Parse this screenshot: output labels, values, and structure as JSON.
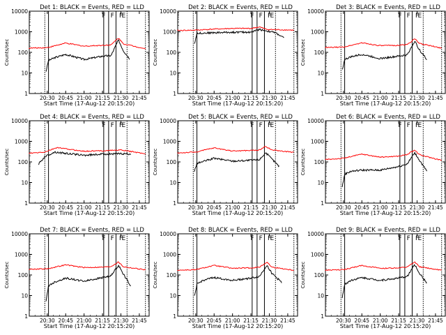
{
  "chart_data": [
    {
      "type": "line",
      "title": "Det 1: BLACK = Events, RED = LLD",
      "xlabel": "Start Time (17-Aug-12 20:15:20)",
      "ylabel": "Counts/sec",
      "ylim": [
        1,
        10000
      ],
      "yscale": "log",
      "xticks": [
        "20:30",
        "20:45",
        "21:00",
        "21:15",
        "21:30",
        "21:45"
      ],
      "yticks": [
        "1",
        "10",
        "100",
        "1000",
        "10000"
      ],
      "flags": [
        "F",
        "F",
        "F",
        "E"
      ],
      "series": [
        {
          "name": "Events",
          "color": "#000000",
          "start": "20:29",
          "end": "21:37",
          "points": [
            [
              "20:29",
              12
            ],
            [
              "20:31",
              40
            ],
            [
              "20:36",
              55
            ],
            [
              "20:45",
              80
            ],
            [
              "21:00",
              45
            ],
            [
              "21:15",
              65
            ],
            [
              "21:22",
              70
            ],
            [
              "21:28",
              400
            ],
            [
              "21:32",
              120
            ],
            [
              "21:37",
              50
            ]
          ]
        },
        {
          "name": "LLD",
          "color": "#ff0000",
          "start": "20:15",
          "end": "21:50",
          "points": [
            [
              "20:15",
              160
            ],
            [
              "20:30",
              170
            ],
            [
              "20:45",
              280
            ],
            [
              "21:00",
              200
            ],
            [
              "21:15",
              220
            ],
            [
              "21:22",
              230
            ],
            [
              "21:28",
              500
            ],
            [
              "21:32",
              260
            ],
            [
              "21:50",
              150
            ]
          ]
        }
      ]
    },
    {
      "type": "line",
      "title": "Det 2: BLACK = Events, RED = LLD",
      "xlabel": "Start Time (17-Aug-12 20:15:20)",
      "ylabel": "Counts/sec",
      "ylim": [
        1,
        10000
      ],
      "yscale": "log",
      "xticks": [
        "20:30",
        "20:45",
        "21:00",
        "21:15",
        "21:30",
        "21:45"
      ],
      "yticks": [
        "1",
        "10",
        "100",
        "1000",
        "10000"
      ],
      "flags": [
        "F",
        "F",
        "F",
        "E"
      ],
      "series": [
        {
          "name": "Events",
          "color": "#000000",
          "start": "20:29",
          "end": "21:42",
          "points": [
            [
              "20:29",
              260
            ],
            [
              "20:31",
              850
            ],
            [
              "20:45",
              900
            ],
            [
              "21:00",
              950
            ],
            [
              "21:15",
              950
            ],
            [
              "21:22",
              1300
            ],
            [
              "21:28",
              1100
            ],
            [
              "21:35",
              900
            ],
            [
              "21:42",
              500
            ]
          ]
        },
        {
          "name": "LLD",
          "color": "#ff0000",
          "start": "20:15",
          "end": "21:50",
          "points": [
            [
              "20:15",
              1150
            ],
            [
              "20:30",
              1200
            ],
            [
              "20:45",
              1350
            ],
            [
              "21:00",
              1450
            ],
            [
              "21:15",
              1450
            ],
            [
              "21:22",
              1700
            ],
            [
              "21:28",
              1300
            ],
            [
              "21:50",
              1200
            ]
          ]
        }
      ]
    },
    {
      "type": "line",
      "title": "Det 3: BLACK = Events, RED = LLD",
      "xlabel": "Start Time (17-Aug-12 20:15:20)",
      "ylabel": "Counts/sec",
      "ylim": [
        1,
        10000
      ],
      "yscale": "log",
      "xticks": [
        "20:30",
        "20:45",
        "21:00",
        "21:15",
        "21:30",
        "21:45"
      ],
      "yticks": [
        "1",
        "10",
        "100",
        "1000",
        "10000"
      ],
      "flags": [
        "F",
        "F",
        "F",
        "E"
      ],
      "series": [
        {
          "name": "Events",
          "color": "#000000",
          "start": "20:29",
          "end": "21:38",
          "points": [
            [
              "20:29",
              14
            ],
            [
              "20:31",
              45
            ],
            [
              "20:36",
              60
            ],
            [
              "20:45",
              80
            ],
            [
              "21:00",
              50
            ],
            [
              "21:15",
              65
            ],
            [
              "21:22",
              75
            ],
            [
              "21:28",
              350
            ],
            [
              "21:32",
              130
            ],
            [
              "21:38",
              45
            ]
          ]
        },
        {
          "name": "LLD",
          "color": "#ff0000",
          "start": "20:15",
          "end": "21:50",
          "points": [
            [
              "20:15",
              170
            ],
            [
              "20:30",
              180
            ],
            [
              "20:45",
              290
            ],
            [
              "21:00",
              210
            ],
            [
              "21:15",
              220
            ],
            [
              "21:22",
              240
            ],
            [
              "21:28",
              450
            ],
            [
              "21:32",
              270
            ],
            [
              "21:50",
              160
            ]
          ]
        }
      ]
    },
    {
      "type": "line",
      "title": "Det 4: BLACK = Events, RED = LLD",
      "xlabel": "Start Time (17-Aug-12 20:15:20)",
      "ylabel": "Counts/sec",
      "ylim": [
        1,
        10000
      ],
      "yscale": "log",
      "xticks": [
        "20:30",
        "20:45",
        "21:00",
        "21:15",
        "21:30",
        "21:45"
      ],
      "yticks": [
        "1",
        "10",
        "100",
        "1000",
        "10000"
      ],
      "flags": [
        "F",
        "F",
        "F",
        "E"
      ],
      "series": [
        {
          "name": "Events",
          "color": "#000000",
          "start": "20:23",
          "end": "21:38",
          "points": [
            [
              "20:23",
              80
            ],
            [
              "20:28",
              180
            ],
            [
              "20:36",
              300
            ],
            [
              "20:45",
              260
            ],
            [
              "21:00",
              210
            ],
            [
              "21:15",
              240
            ],
            [
              "21:30",
              250
            ],
            [
              "21:38",
              240
            ]
          ]
        },
        {
          "name": "LLD",
          "color": "#ff0000",
          "start": "20:15",
          "end": "21:50",
          "points": [
            [
              "20:15",
              260
            ],
            [
              "20:28",
              300
            ],
            [
              "20:38",
              500
            ],
            [
              "20:45",
              430
            ],
            [
              "21:00",
              330
            ],
            [
              "21:15",
              350
            ],
            [
              "21:30",
              380
            ],
            [
              "21:50",
              250
            ]
          ]
        }
      ]
    },
    {
      "type": "line",
      "title": "Det 5: BLACK = Events, RED = LLD",
      "xlabel": "Start Time (17-Aug-12 20:15:20)",
      "ylabel": "Counts/sec",
      "ylim": [
        1,
        10000
      ],
      "yscale": "log",
      "xticks": [
        "20:30",
        "20:45",
        "21:00",
        "21:15",
        "21:30",
        "21:45"
      ],
      "yticks": [
        "1",
        "10",
        "100",
        "1000",
        "10000"
      ],
      "flags": [
        "F",
        "F",
        "F",
        "E"
      ],
      "series": [
        {
          "name": "Events",
          "color": "#000000",
          "start": "20:29",
          "end": "21:38",
          "points": [
            [
              "20:29",
              35
            ],
            [
              "20:31",
              85
            ],
            [
              "20:45",
              150
            ],
            [
              "21:00",
              110
            ],
            [
              "21:15",
              120
            ],
            [
              "21:22",
              130
            ],
            [
              "21:27",
              280
            ],
            [
              "21:32",
              140
            ],
            [
              "21:38",
              60
            ]
          ]
        },
        {
          "name": "LLD",
          "color": "#ff0000",
          "start": "20:15",
          "end": "21:50",
          "points": [
            [
              "20:15",
              270
            ],
            [
              "20:30",
              300
            ],
            [
              "20:45",
              480
            ],
            [
              "21:00",
              340
            ],
            [
              "21:15",
              360
            ],
            [
              "21:22",
              380
            ],
            [
              "21:27",
              580
            ],
            [
              "21:32",
              380
            ],
            [
              "21:50",
              290
            ]
          ]
        }
      ]
    },
    {
      "type": "line",
      "title": "Det 6: BLACK = Events, RED = LLD",
      "xlabel": "Start Time (17-Aug-12 20:15:20)",
      "ylabel": "Counts/sec",
      "ylim": [
        1,
        10000
      ],
      "yscale": "log",
      "xticks": [
        "20:30",
        "20:45",
        "21:00",
        "21:15",
        "21:30",
        "21:45"
      ],
      "yticks": [
        "1",
        "10",
        "100",
        "1000",
        "10000"
      ],
      "flags": [
        "F",
        "F",
        "F",
        "E"
      ],
      "series": [
        {
          "name": "Events",
          "color": "#000000",
          "start": "20:29",
          "end": "21:38",
          "points": [
            [
              "20:29",
              6
            ],
            [
              "20:31",
              25
            ],
            [
              "20:36",
              35
            ],
            [
              "20:45",
              40
            ],
            [
              "21:00",
              40
            ],
            [
              "21:15",
              60
            ],
            [
              "21:22",
              80
            ],
            [
              "21:28",
              280
            ],
            [
              "21:32",
              120
            ],
            [
              "21:38",
              35
            ]
          ]
        },
        {
          "name": "LLD",
          "color": "#ff0000",
          "start": "20:15",
          "end": "21:50",
          "points": [
            [
              "20:15",
              130
            ],
            [
              "20:30",
              150
            ],
            [
              "20:45",
              240
            ],
            [
              "21:00",
              170
            ],
            [
              "21:15",
              190
            ],
            [
              "21:22",
              230
            ],
            [
              "21:28",
              380
            ],
            [
              "21:32",
              220
            ],
            [
              "21:50",
              120
            ]
          ]
        }
      ]
    },
    {
      "type": "line",
      "title": "Det 7: BLACK = Events, RED = LLD",
      "xlabel": "Start Time (17-Aug-12 20:15:20)",
      "ylabel": "Counts/sec",
      "ylim": [
        1,
        10000
      ],
      "yscale": "log",
      "xticks": [
        "20:30",
        "20:45",
        "21:00",
        "21:15",
        "21:30",
        "21:45"
      ],
      "yticks": [
        "1",
        "10",
        "100",
        "1000",
        "10000"
      ],
      "flags": [
        "F",
        "F",
        "F",
        "E"
      ],
      "series": [
        {
          "name": "Events",
          "color": "#000000",
          "start": "20:29",
          "end": "21:38",
          "points": [
            [
              "20:29",
              5
            ],
            [
              "20:31",
              30
            ],
            [
              "20:36",
              45
            ],
            [
              "20:45",
              70
            ],
            [
              "21:00",
              50
            ],
            [
              "21:15",
              75
            ],
            [
              "21:22",
              90
            ],
            [
              "21:28",
              300
            ],
            [
              "21:32",
              110
            ],
            [
              "21:38",
              30
            ]
          ]
        },
        {
          "name": "LLD",
          "color": "#ff0000",
          "start": "20:15",
          "end": "21:50",
          "points": [
            [
              "20:15",
              190
            ],
            [
              "20:30",
              200
            ],
            [
              "20:45",
              310
            ],
            [
              "21:00",
              230
            ],
            [
              "21:15",
              240
            ],
            [
              "21:22",
              260
            ],
            [
              "21:28",
              430
            ],
            [
              "21:32",
              250
            ],
            [
              "21:50",
              180
            ]
          ]
        }
      ]
    },
    {
      "type": "line",
      "title": "Det 8: BLACK = Events, RED = LLD",
      "xlabel": "Start Time (17-Aug-12 20:15:20)",
      "ylabel": "Counts/sec",
      "ylim": [
        1,
        10000
      ],
      "yscale": "log",
      "xticks": [
        "20:30",
        "20:45",
        "21:00",
        "21:15",
        "21:30",
        "21:45"
      ],
      "yticks": [
        "1",
        "10",
        "100",
        "1000",
        "10000"
      ],
      "flags": [
        "F",
        "F",
        "F",
        "E"
      ],
      "series": [
        {
          "name": "Events",
          "color": "#000000",
          "start": "20:29",
          "end": "21:40",
          "points": [
            [
              "20:29",
              9
            ],
            [
              "20:31",
              35
            ],
            [
              "20:36",
              55
            ],
            [
              "20:45",
              75
            ],
            [
              "21:00",
              55
            ],
            [
              "21:15",
              70
            ],
            [
              "21:22",
              85
            ],
            [
              "21:28",
              300
            ],
            [
              "21:32",
              120
            ],
            [
              "21:40",
              45
            ]
          ]
        },
        {
          "name": "LLD",
          "color": "#ff0000",
          "start": "20:15",
          "end": "21:50",
          "points": [
            [
              "20:15",
              170
            ],
            [
              "20:30",
              180
            ],
            [
              "20:45",
              290
            ],
            [
              "21:00",
              210
            ],
            [
              "21:15",
              220
            ],
            [
              "21:22",
              240
            ],
            [
              "21:28",
              420
            ],
            [
              "21:32",
              240
            ],
            [
              "21:50",
              170
            ]
          ]
        }
      ]
    },
    {
      "type": "line",
      "title": "Det 9: BLACK = Events, RED = LLD",
      "xlabel": "Start Time (17-Aug-12 20:15:20)",
      "ylabel": "Counts/sec",
      "ylim": [
        1,
        10000
      ],
      "yscale": "log",
      "xticks": [
        "20:30",
        "20:45",
        "21:00",
        "21:15",
        "21:30",
        "21:45"
      ],
      "yticks": [
        "1",
        "10",
        "100",
        "1000",
        "10000"
      ],
      "flags": [
        "F",
        "F",
        "F",
        "E"
      ],
      "series": [
        {
          "name": "Events",
          "color": "#000000",
          "start": "20:29",
          "end": "21:38",
          "points": [
            [
              "20:29",
              8
            ],
            [
              "20:31",
              35
            ],
            [
              "20:36",
              55
            ],
            [
              "20:45",
              75
            ],
            [
              "21:00",
              55
            ],
            [
              "21:15",
              70
            ],
            [
              "21:22",
              85
            ],
            [
              "21:28",
              320
            ],
            [
              "21:32",
              120
            ],
            [
              "21:38",
              40
            ]
          ]
        },
        {
          "name": "LLD",
          "color": "#ff0000",
          "start": "20:15",
          "end": "21:50",
          "points": [
            [
              "20:15",
              170
            ],
            [
              "20:30",
              180
            ],
            [
              "20:45",
              290
            ],
            [
              "21:00",
              210
            ],
            [
              "21:15",
              220
            ],
            [
              "21:22",
              240
            ],
            [
              "21:28",
              430
            ],
            [
              "21:32",
              250
            ],
            [
              "21:50",
              170
            ]
          ]
        }
      ]
    }
  ]
}
